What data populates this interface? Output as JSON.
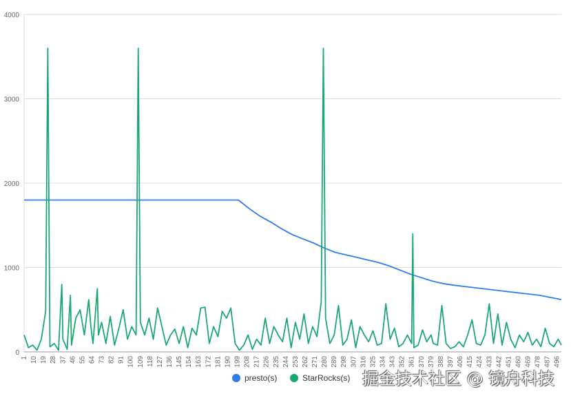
{
  "chart_data": {
    "type": "line",
    "title": "",
    "xlabel": "",
    "ylabel": "",
    "ylim": [
      0,
      4000
    ],
    "xlim": [
      1,
      500
    ],
    "yticks": [
      "0",
      "1000",
      "2000",
      "3000",
      "4000"
    ],
    "xticks": [
      "1",
      "10",
      "19",
      "28",
      "37",
      "46",
      "55",
      "64",
      "73",
      "82",
      "91",
      "100",
      "109",
      "118",
      "127",
      "136",
      "145",
      "154",
      "163",
      "172",
      "181",
      "190",
      "199",
      "208",
      "217",
      "226",
      "235",
      "244",
      "253",
      "262",
      "271",
      "280",
      "289",
      "298",
      "307",
      "316",
      "325",
      "334",
      "343",
      "352",
      "361",
      "370",
      "379",
      "388",
      "397",
      "406",
      "415",
      "424",
      "433",
      "442",
      "451",
      "460",
      "469",
      "478",
      "487",
      "496"
    ],
    "grid": true,
    "legend_position": "bottom",
    "series": [
      {
        "name": "presto(s)",
        "color": "#2b7de9",
        "points": [
          [
            1,
            1800
          ],
          [
            200,
            1800
          ],
          [
            210,
            1700
          ],
          [
            220,
            1610
          ],
          [
            230,
            1540
          ],
          [
            240,
            1460
          ],
          [
            250,
            1390
          ],
          [
            260,
            1340
          ],
          [
            270,
            1290
          ],
          [
            280,
            1230
          ],
          [
            290,
            1180
          ],
          [
            300,
            1150
          ],
          [
            310,
            1120
          ],
          [
            320,
            1090
          ],
          [
            330,
            1060
          ],
          [
            340,
            1020
          ],
          [
            350,
            970
          ],
          [
            360,
            920
          ],
          [
            370,
            880
          ],
          [
            380,
            840
          ],
          [
            390,
            810
          ],
          [
            400,
            790
          ],
          [
            420,
            760
          ],
          [
            440,
            730
          ],
          [
            460,
            700
          ],
          [
            480,
            670
          ],
          [
            500,
            620
          ]
        ]
      },
      {
        "name": "StarRocks(s)",
        "color": "#1aa872",
        "points": [
          [
            1,
            200
          ],
          [
            5,
            50
          ],
          [
            9,
            80
          ],
          [
            13,
            20
          ],
          [
            17,
            150
          ],
          [
            21,
            480
          ],
          [
            23,
            3600
          ],
          [
            25,
            60
          ],
          [
            29,
            100
          ],
          [
            33,
            20
          ],
          [
            36,
            800
          ],
          [
            37,
            150
          ],
          [
            41,
            30
          ],
          [
            44,
            670
          ],
          [
            45,
            80
          ],
          [
            49,
            400
          ],
          [
            53,
            500
          ],
          [
            57,
            200
          ],
          [
            61,
            620
          ],
          [
            63,
            300
          ],
          [
            65,
            100
          ],
          [
            69,
            750
          ],
          [
            70,
            200
          ],
          [
            73,
            350
          ],
          [
            77,
            100
          ],
          [
            81,
            420
          ],
          [
            85,
            80
          ],
          [
            89,
            280
          ],
          [
            93,
            500
          ],
          [
            97,
            150
          ],
          [
            101,
            300
          ],
          [
            105,
            200
          ],
          [
            107,
            3600
          ],
          [
            109,
            350
          ],
          [
            113,
            200
          ],
          [
            117,
            400
          ],
          [
            121,
            150
          ],
          [
            125,
            520
          ],
          [
            129,
            300
          ],
          [
            133,
            80
          ],
          [
            137,
            200
          ],
          [
            141,
            270
          ],
          [
            145,
            100
          ],
          [
            149,
            300
          ],
          [
            153,
            50
          ],
          [
            157,
            280
          ],
          [
            161,
            200
          ],
          [
            165,
            520
          ],
          [
            169,
            530
          ],
          [
            173,
            100
          ],
          [
            177,
            300
          ],
          [
            181,
            180
          ],
          [
            185,
            480
          ],
          [
            189,
            400
          ],
          [
            193,
            520
          ],
          [
            197,
            100
          ],
          [
            201,
            20
          ],
          [
            205,
            80
          ],
          [
            209,
            200
          ],
          [
            213,
            30
          ],
          [
            217,
            150
          ],
          [
            221,
            80
          ],
          [
            225,
            400
          ],
          [
            229,
            100
          ],
          [
            233,
            300
          ],
          [
            237,
            200
          ],
          [
            241,
            120
          ],
          [
            245,
            400
          ],
          [
            249,
            50
          ],
          [
            253,
            350
          ],
          [
            257,
            150
          ],
          [
            261,
            450
          ],
          [
            265,
            100
          ],
          [
            269,
            300
          ],
          [
            273,
            180
          ],
          [
            277,
            600
          ],
          [
            279,
            3600
          ],
          [
            281,
            400
          ],
          [
            285,
            100
          ],
          [
            289,
            200
          ],
          [
            293,
            550
          ],
          [
            297,
            80
          ],
          [
            301,
            150
          ],
          [
            305,
            380
          ],
          [
            309,
            50
          ],
          [
            313,
            300
          ],
          [
            317,
            200
          ],
          [
            321,
            120
          ],
          [
            325,
            250
          ],
          [
            329,
            80
          ],
          [
            333,
            100
          ],
          [
            337,
            570
          ],
          [
            341,
            150
          ],
          [
            345,
            280
          ],
          [
            349,
            60
          ],
          [
            353,
            100
          ],
          [
            357,
            200
          ],
          [
            361,
            100
          ],
          [
            362,
            1400
          ],
          [
            363,
            50
          ],
          [
            367,
            80
          ],
          [
            371,
            260
          ],
          [
            375,
            120
          ],
          [
            379,
            200
          ],
          [
            381,
            100
          ],
          [
            385,
            80
          ],
          [
            389,
            550
          ],
          [
            393,
            100
          ],
          [
            397,
            40
          ],
          [
            401,
            60
          ],
          [
            405,
            120
          ],
          [
            409,
            60
          ],
          [
            413,
            200
          ],
          [
            417,
            380
          ],
          [
            421,
            100
          ],
          [
            425,
            80
          ],
          [
            429,
            200
          ],
          [
            433,
            570
          ],
          [
            437,
            100
          ],
          [
            441,
            450
          ],
          [
            445,
            80
          ],
          [
            449,
            350
          ],
          [
            453,
            150
          ],
          [
            457,
            50
          ],
          [
            461,
            200
          ],
          [
            465,
            120
          ],
          [
            469,
            230
          ],
          [
            473,
            80
          ],
          [
            477,
            150
          ],
          [
            481,
            60
          ],
          [
            485,
            280
          ],
          [
            489,
            100
          ],
          [
            493,
            60
          ],
          [
            497,
            150
          ],
          [
            500,
            80
          ]
        ]
      }
    ]
  },
  "legend": {
    "presto": "presto(s)",
    "starrocks": "StarRocks(s)"
  },
  "watermark": "掘金技术社区 @ 镜舟科技"
}
